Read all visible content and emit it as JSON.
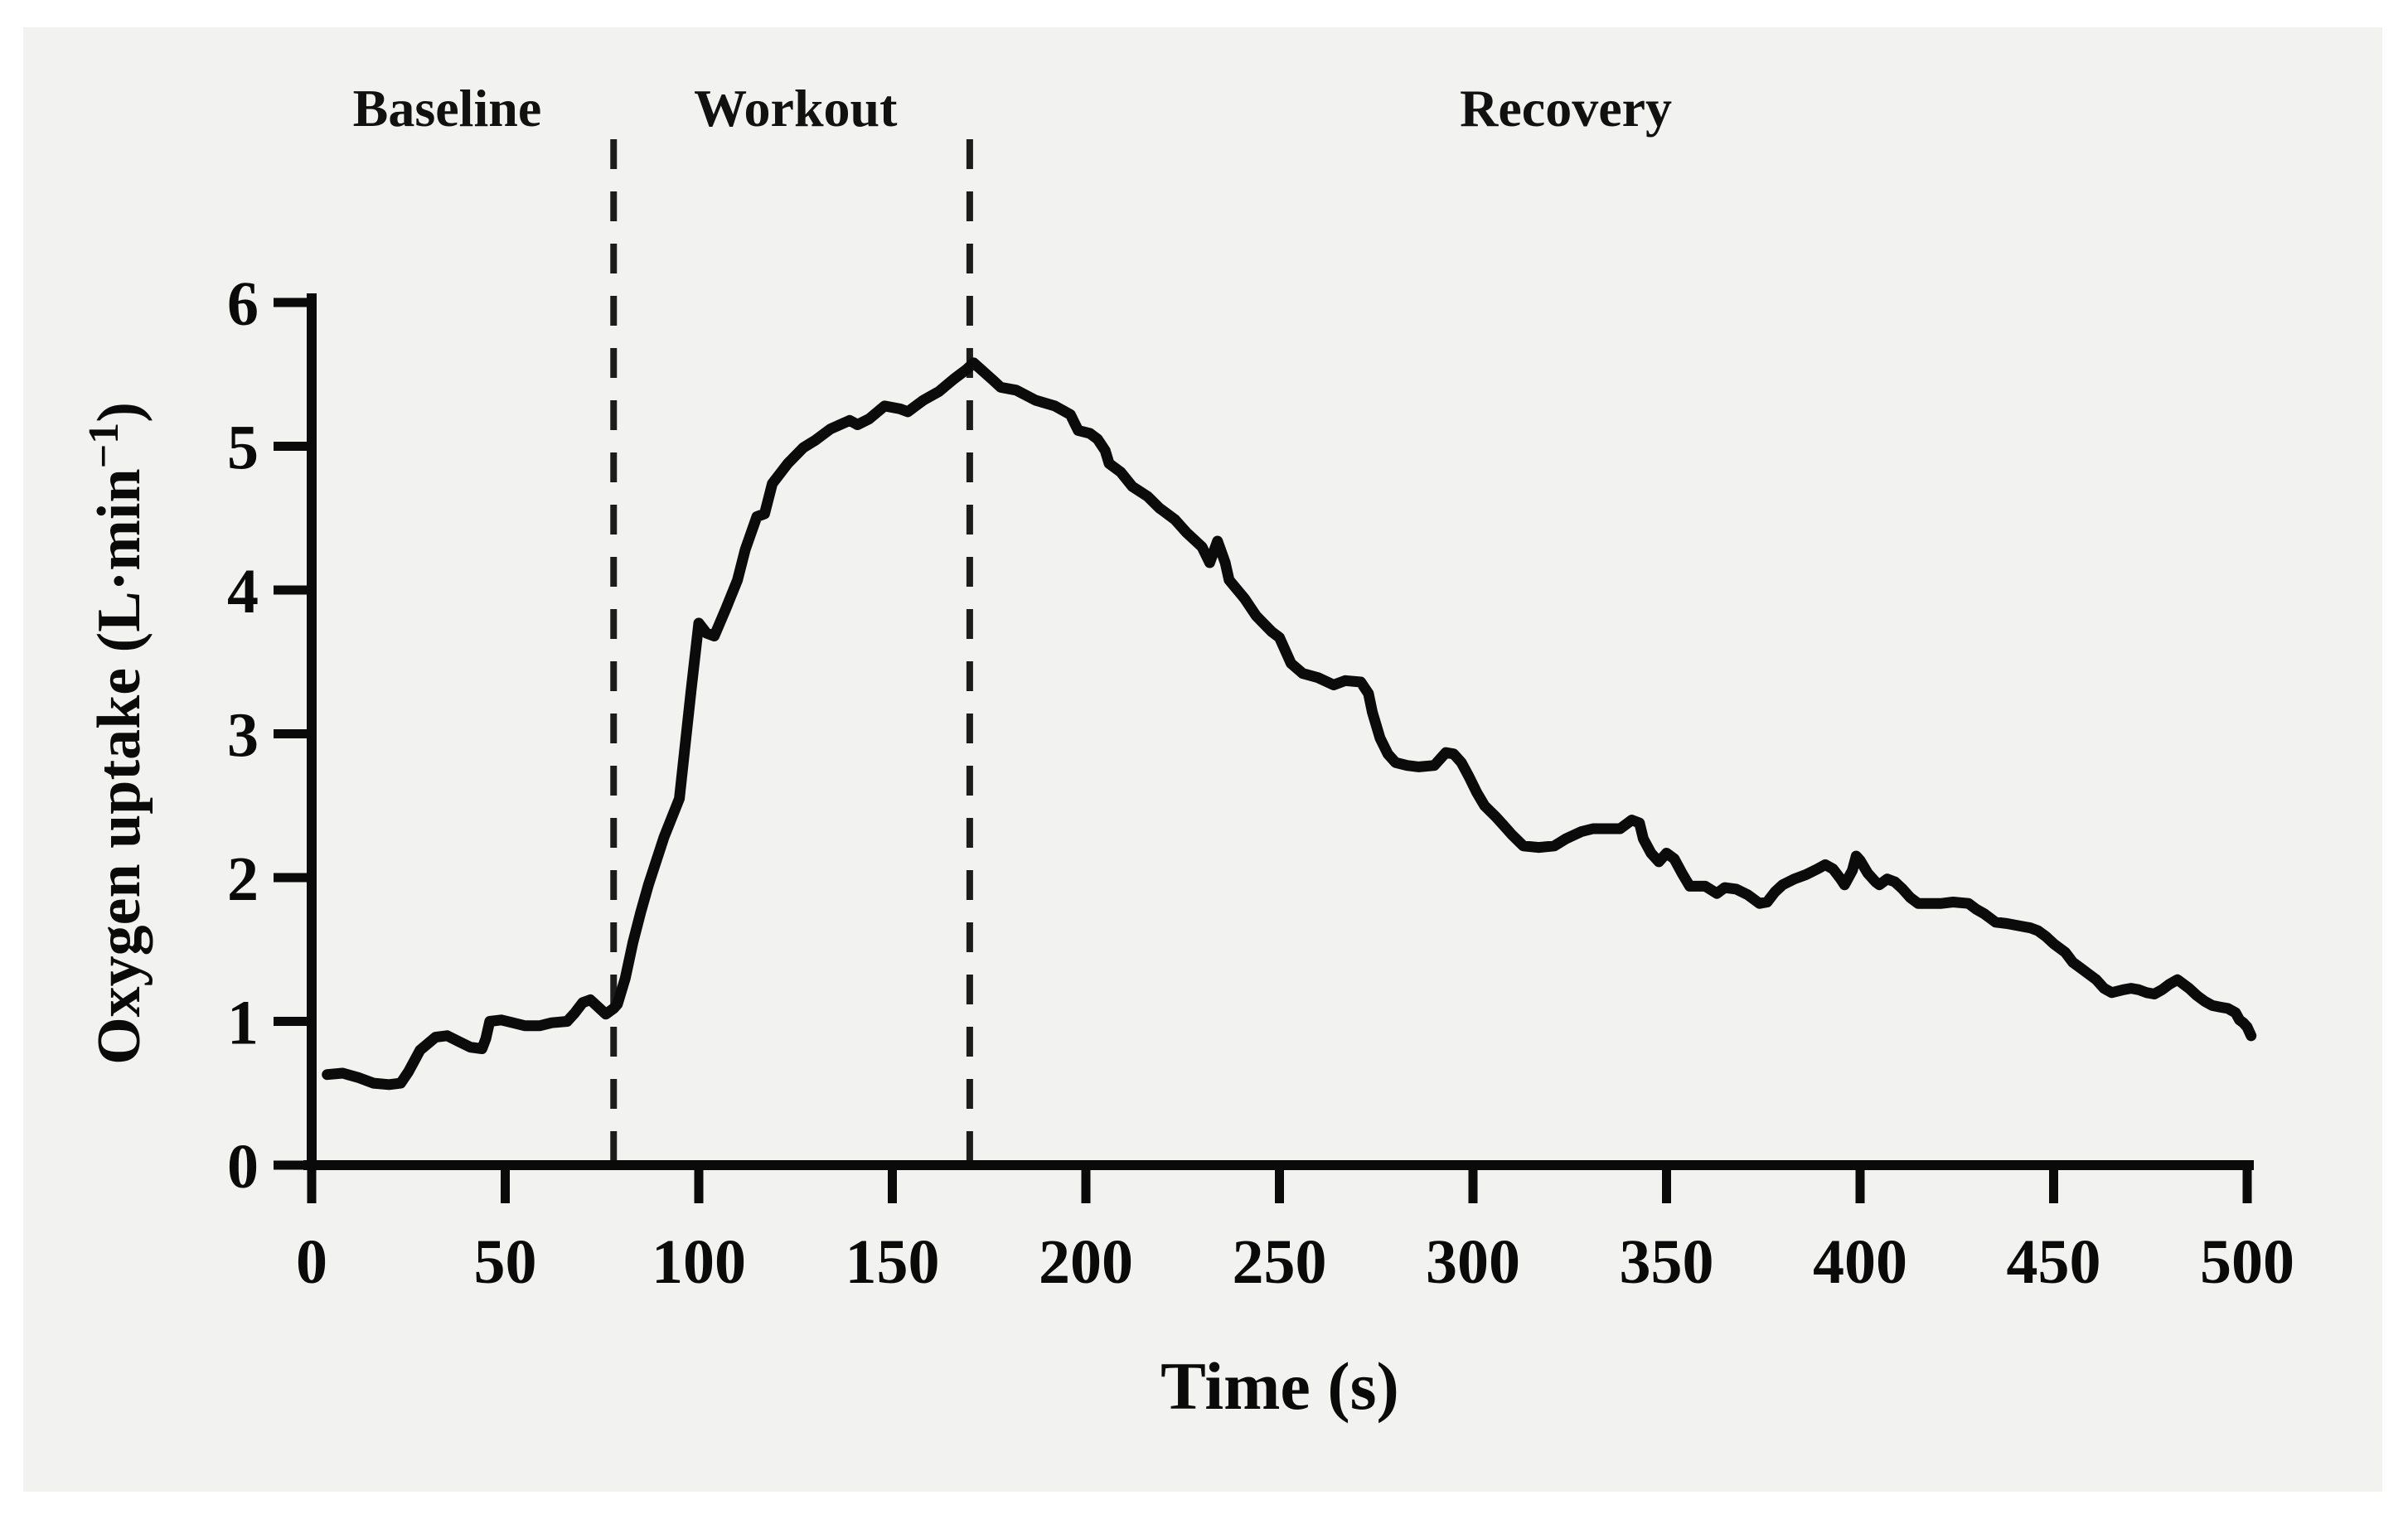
{
  "panel_background": "#f2f2f0",
  "chart_data": {
    "type": "line",
    "title": "",
    "xlabel": "Time (s)",
    "ylabel": "Oxygen uptake (L·min⁻¹)",
    "ylabel_parts": {
      "prefix": "Oxygen uptake (L·min",
      "superscript": "−1",
      "suffix": ")"
    },
    "xlim": [
      0,
      500
    ],
    "ylim": [
      0,
      6
    ],
    "x_ticks": [
      0,
      50,
      100,
      150,
      200,
      250,
      300,
      350,
      400,
      450,
      500
    ],
    "y_ticks": [
      0,
      1,
      2,
      3,
      4,
      5,
      6
    ],
    "grid": false,
    "legend": "none",
    "line_color": "#0b0b0b",
    "phases": [
      {
        "label": "Baseline",
        "t_center": 35
      },
      {
        "label": "Workout",
        "t_center": 125
      },
      {
        "label": "Recovery",
        "t_center": 324
      }
    ],
    "phase_boundaries_s": [
      78,
      170
    ],
    "series": [
      {
        "name": "Oxygen uptake",
        "points": [
          [
            4,
            0.63
          ],
          [
            8,
            0.64
          ],
          [
            12,
            0.61
          ],
          [
            16,
            0.57
          ],
          [
            20,
            0.56
          ],
          [
            23,
            0.57
          ],
          [
            25,
            0.65
          ],
          [
            28,
            0.8
          ],
          [
            32,
            0.89
          ],
          [
            35,
            0.9
          ],
          [
            38,
            0.86
          ],
          [
            41,
            0.82
          ],
          [
            44,
            0.81
          ],
          [
            45,
            0.88
          ],
          [
            46,
            1.0
          ],
          [
            49,
            1.01
          ],
          [
            52,
            0.99
          ],
          [
            55,
            0.97
          ],
          [
            59,
            0.97
          ],
          [
            62,
            0.99
          ],
          [
            66,
            1.0
          ],
          [
            68,
            1.06
          ],
          [
            70,
            1.13
          ],
          [
            72,
            1.15
          ],
          [
            74,
            1.1
          ],
          [
            76,
            1.05
          ],
          [
            78,
            1.09
          ],
          [
            79,
            1.12
          ],
          [
            81,
            1.3
          ],
          [
            83,
            1.55
          ],
          [
            85,
            1.76
          ],
          [
            87,
            1.95
          ],
          [
            91,
            2.28
          ],
          [
            95,
            2.55
          ],
          [
            98,
            3.3
          ],
          [
            100,
            3.77
          ],
          [
            102,
            3.7
          ],
          [
            104,
            3.68
          ],
          [
            107,
            3.87
          ],
          [
            110,
            4.07
          ],
          [
            112,
            4.28
          ],
          [
            115,
            4.51
          ],
          [
            117,
            4.53
          ],
          [
            119,
            4.74
          ],
          [
            123,
            4.88
          ],
          [
            127,
            4.99
          ],
          [
            130,
            5.04
          ],
          [
            134,
            5.12
          ],
          [
            139,
            5.18
          ],
          [
            141,
            5.15
          ],
          [
            144,
            5.19
          ],
          [
            148,
            5.28
          ],
          [
            152,
            5.26
          ],
          [
            154,
            5.24
          ],
          [
            156,
            5.28
          ],
          [
            158,
            5.32
          ],
          [
            162,
            5.38
          ],
          [
            166,
            5.47
          ],
          [
            169,
            5.53
          ],
          [
            171,
            5.58
          ],
          [
            176,
            5.46
          ],
          [
            178,
            5.41
          ],
          [
            182,
            5.39
          ],
          [
            187,
            5.32
          ],
          [
            192,
            5.28
          ],
          [
            196,
            5.22
          ],
          [
            198,
            5.11
          ],
          [
            201,
            5.09
          ],
          [
            203,
            5.05
          ],
          [
            205,
            4.97
          ],
          [
            206,
            4.88
          ],
          [
            209,
            4.82
          ],
          [
            212,
            4.72
          ],
          [
            216,
            4.65
          ],
          [
            219,
            4.57
          ],
          [
            223,
            4.49
          ],
          [
            226,
            4.4
          ],
          [
            230,
            4.3
          ],
          [
            232,
            4.19
          ],
          [
            234,
            4.34
          ],
          [
            236,
            4.19
          ],
          [
            237,
            4.07
          ],
          [
            241,
            3.94
          ],
          [
            244,
            3.82
          ],
          [
            248,
            3.71
          ],
          [
            250,
            3.67
          ],
          [
            253,
            3.49
          ],
          [
            256,
            3.42
          ],
          [
            260,
            3.39
          ],
          [
            264,
            3.34
          ],
          [
            267,
            3.37
          ],
          [
            271,
            3.36
          ],
          [
            273,
            3.28
          ],
          [
            274,
            3.15
          ],
          [
            276,
            2.97
          ],
          [
            278,
            2.86
          ],
          [
            280,
            2.8
          ],
          [
            283,
            2.78
          ],
          [
            286,
            2.77
          ],
          [
            290,
            2.78
          ],
          [
            293,
            2.87
          ],
          [
            295,
            2.86
          ],
          [
            297,
            2.8
          ],
          [
            299,
            2.7
          ],
          [
            301,
            2.59
          ],
          [
            303,
            2.5
          ],
          [
            306,
            2.42
          ],
          [
            308,
            2.36
          ],
          [
            310,
            2.3
          ],
          [
            313,
            2.22
          ],
          [
            317,
            2.21
          ],
          [
            321,
            2.22
          ],
          [
            324,
            2.27
          ],
          [
            328,
            2.32
          ],
          [
            331,
            2.34
          ],
          [
            335,
            2.34
          ],
          [
            338,
            2.34
          ],
          [
            341,
            2.4
          ],
          [
            343,
            2.38
          ],
          [
            344,
            2.27
          ],
          [
            346,
            2.17
          ],
          [
            348,
            2.11
          ],
          [
            350,
            2.17
          ],
          [
            352,
            2.13
          ],
          [
            354,
            2.03
          ],
          [
            356,
            1.94
          ],
          [
            360,
            1.94
          ],
          [
            363,
            1.89
          ],
          [
            365,
            1.93
          ],
          [
            368,
            1.92
          ],
          [
            371,
            1.88
          ],
          [
            374,
            1.82
          ],
          [
            376,
            1.83
          ],
          [
            378,
            1.9
          ],
          [
            380,
            1.95
          ],
          [
            383,
            1.99
          ],
          [
            386,
            2.02
          ],
          [
            389,
            2.06
          ],
          [
            391,
            2.09
          ],
          [
            393,
            2.06
          ],
          [
            395,
            1.99
          ],
          [
            396,
            1.95
          ],
          [
            398,
            2.05
          ],
          [
            399,
            2.15
          ],
          [
            400,
            2.12
          ],
          [
            402,
            2.03
          ],
          [
            404,
            1.97
          ],
          [
            405,
            1.95
          ],
          [
            407,
            1.99
          ],
          [
            409,
            1.97
          ],
          [
            411,
            1.92
          ],
          [
            413,
            1.86
          ],
          [
            415,
            1.82
          ],
          [
            418,
            1.82
          ],
          [
            421,
            1.82
          ],
          [
            424,
            1.83
          ],
          [
            428,
            1.82
          ],
          [
            430,
            1.78
          ],
          [
            432,
            1.75
          ],
          [
            435,
            1.69
          ],
          [
            438,
            1.68
          ],
          [
            442,
            1.66
          ],
          [
            444,
            1.65
          ],
          [
            446,
            1.63
          ],
          [
            448,
            1.59
          ],
          [
            450,
            1.54
          ],
          [
            453,
            1.48
          ],
          [
            455,
            1.41
          ],
          [
            457,
            1.37
          ],
          [
            459,
            1.33
          ],
          [
            461,
            1.29
          ],
          [
            463,
            1.23
          ],
          [
            465,
            1.2
          ],
          [
            468,
            1.22
          ],
          [
            470,
            1.23
          ],
          [
            472,
            1.22
          ],
          [
            474,
            1.2
          ],
          [
            476,
            1.19
          ],
          [
            478,
            1.22
          ],
          [
            480,
            1.26
          ],
          [
            482,
            1.29
          ],
          [
            485,
            1.23
          ],
          [
            487,
            1.18
          ],
          [
            489,
            1.14
          ],
          [
            491,
            1.11
          ],
          [
            493,
            1.1
          ],
          [
            495,
            1.09
          ],
          [
            497,
            1.06
          ],
          [
            498,
            1.01
          ],
          [
            499,
            0.99
          ],
          [
            500,
            0.96
          ],
          [
            501,
            0.9
          ]
        ]
      }
    ]
  }
}
